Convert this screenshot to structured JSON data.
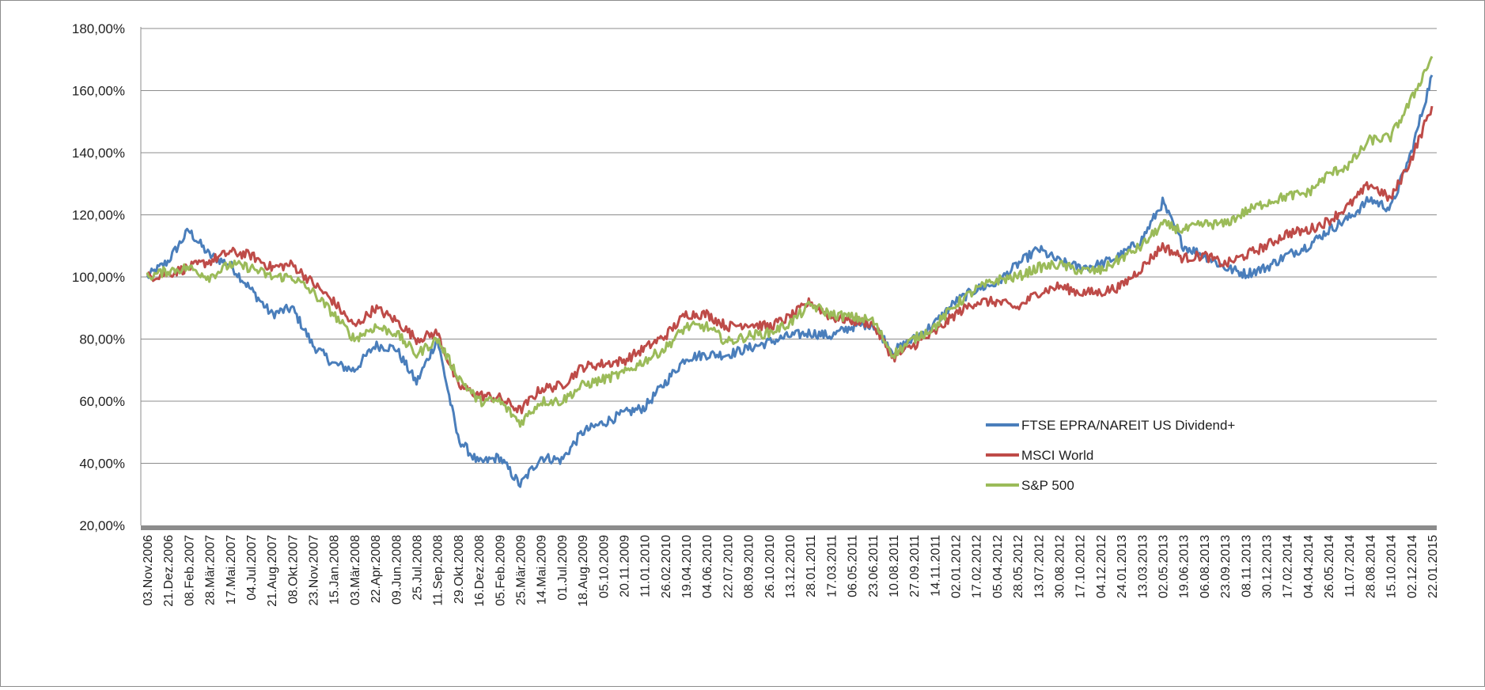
{
  "chart_data": {
    "type": "line",
    "title": "",
    "xlabel": "",
    "ylabel": "",
    "ylim": [
      20,
      180
    ],
    "yticks": [
      20,
      40,
      60,
      80,
      100,
      120,
      140,
      160,
      180
    ],
    "ytick_labels": [
      "20,00%",
      "40,00%",
      "60,00%",
      "80,00%",
      "100,00%",
      "120,00%",
      "140,00%",
      "160,00%",
      "180,00%"
    ],
    "grid": "horizontal",
    "legend_position": "lower-right",
    "x_tick_labels": [
      "03.Nov.2006",
      "21.Dez.2006",
      "08.Feb.2007",
      "28.Mär.2007",
      "17.Mai.2007",
      "04.Jul.2007",
      "21.Aug.2007",
      "08.Okt.2007",
      "23.Nov.2007",
      "15.Jan.2008",
      "03.Mär.2008",
      "22.Apr.2008",
      "09.Jun.2008",
      "25.Jul.2008",
      "11.Sep.2008",
      "29.Okt.2008",
      "16.Dez.2008",
      "05.Feb.2009",
      "25.Mär.2009",
      "14.Mai.2009",
      "01.Jul.2009",
      "18.Aug.2009",
      "05.10.2009",
      "20.11.2009",
      "11.01.2010",
      "26.02.2010",
      "19.04.2010",
      "04.06.2010",
      "22.07.2010",
      "08.09.2010",
      "26.10.2010",
      "13.12.2010",
      "28.01.2011",
      "17.03.2011",
      "06.05.2011",
      "23.06.2011",
      "10.08.2011",
      "27.09.2011",
      "14.11.2011",
      "02.01.2012",
      "17.02.2012",
      "05.04.2012",
      "28.05.2012",
      "13.07.2012",
      "30.08.2012",
      "17.10.2012",
      "04.12.2012",
      "24.01.2013",
      "13.03.2013",
      "02.05.2013",
      "19.06.2013",
      "06.08.2013",
      "23.09.2013",
      "08.11.2013",
      "30.12.2013",
      "17.02.2014",
      "04.04.2014",
      "26.05.2014",
      "11.07.2014",
      "28.08.2014",
      "15.10.2014",
      "02.12.2014",
      "22.01.2015"
    ],
    "series": [
      {
        "name": "FTSE EPRA/NAREIT US Dividend+",
        "color": "#4a7ebb",
        "values": [
          100,
          105,
          115,
          107,
          104,
          96,
          88,
          90,
          78,
          72,
          70,
          78,
          77,
          66,
          80,
          48,
          40,
          42,
          33,
          42,
          41,
          50,
          53,
          56,
          58,
          66,
          74,
          75,
          75,
          77,
          79,
          81,
          82,
          81,
          84,
          85,
          76,
          80,
          85,
          92,
          96,
          98,
          104,
          109,
          105,
          103,
          104,
          107,
          112,
          124,
          110,
          107,
          103,
          101,
          103,
          107,
          110,
          115,
          119,
          125,
          122,
          140,
          165
        ]
      },
      {
        "name": "MSCI World",
        "color": "#be4b48",
        "values": [
          100,
          101,
          103,
          105,
          108,
          107,
          103,
          104,
          98,
          92,
          84,
          90,
          86,
          80,
          82,
          65,
          62,
          61,
          57,
          64,
          65,
          71,
          72,
          73,
          77,
          81,
          88,
          88,
          84,
          85,
          84,
          87,
          92,
          87,
          86,
          85,
          74,
          78,
          82,
          88,
          92,
          92,
          90,
          95,
          97,
          95,
          95,
          97,
          103,
          110,
          106,
          107,
          104,
          107,
          110,
          114,
          115,
          118,
          123,
          130,
          125,
          138,
          155
        ]
      },
      {
        "name": "S&P 500",
        "color": "#9bbb59",
        "values": [
          100,
          102,
          103,
          100,
          104,
          103,
          100,
          100,
          95,
          88,
          80,
          84,
          82,
          75,
          80,
          68,
          60,
          60,
          53,
          60,
          60,
          65,
          67,
          69,
          73,
          77,
          84,
          84,
          79,
          81,
          82,
          85,
          91,
          88,
          87,
          86,
          75,
          80,
          84,
          91,
          96,
          99,
          100,
          103,
          104,
          102,
          102,
          106,
          110,
          117,
          115,
          117,
          117,
          121,
          124,
          126,
          127,
          133,
          136,
          144,
          145,
          157,
          171
        ]
      }
    ]
  }
}
